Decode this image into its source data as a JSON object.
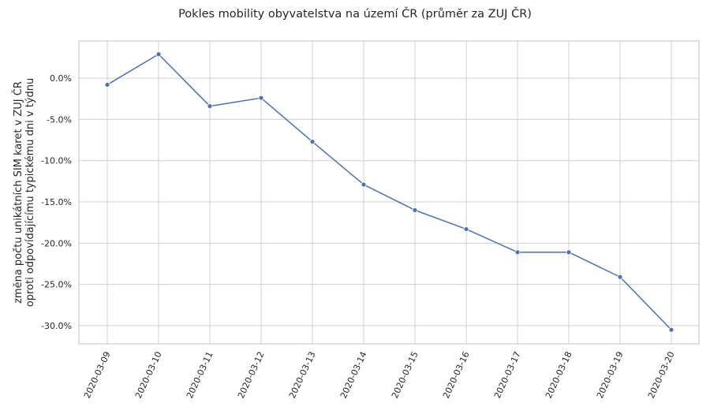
{
  "chart_data": {
    "type": "line",
    "title": "Pokles mobility obyvatelstva na území ČR (průměr za ZUJ ČR)",
    "xlabel": "",
    "ylabel": [
      "změna počtu unikátních SIM karet v ZUJ ČR",
      "oproti odpovídajícímu typickému dni v týdnu"
    ],
    "x": [
      "2020-03-09",
      "2020-03-10",
      "2020-03-11",
      "2020-03-12",
      "2020-03-13",
      "2020-03-14",
      "2020-03-15",
      "2020-03-16",
      "2020-03-17",
      "2020-03-18",
      "2020-03-19",
      "2020-03-20"
    ],
    "values": [
      -0.8,
      2.9,
      -3.4,
      -2.4,
      -7.7,
      -12.9,
      -16.0,
      -18.3,
      -21.1,
      -21.1,
      -24.1,
      -30.5
    ],
    "yticks": [
      0,
      -5,
      -10,
      -15,
      -20,
      -25,
      -30
    ],
    "ytick_labels": [
      "0.0%",
      "-5.0%",
      "-10.0%",
      "-15.0%",
      "-20.0%",
      "-25.0%",
      "-30.0%"
    ],
    "ylim": [
      -32.2,
      4.5
    ],
    "grid": true,
    "colors": {
      "line": "#4c72b0",
      "grid": "#d0d0d0",
      "frame": "#cccccc"
    }
  }
}
